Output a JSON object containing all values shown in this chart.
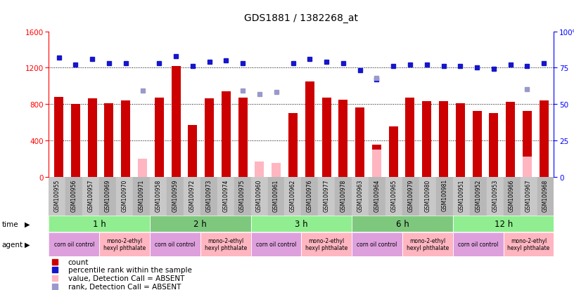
{
  "title": "GDS1881 / 1382268_at",
  "samples": [
    "GSM100955",
    "GSM100956",
    "GSM100957",
    "GSM100969",
    "GSM100970",
    "GSM100971",
    "GSM100958",
    "GSM100959",
    "GSM100972",
    "GSM100973",
    "GSM100974",
    "GSM100975",
    "GSM100960",
    "GSM100961",
    "GSM100962",
    "GSM100976",
    "GSM100977",
    "GSM100978",
    "GSM100963",
    "GSM100964",
    "GSM100965",
    "GSM100979",
    "GSM100980",
    "GSM100981",
    "GSM100951",
    "GSM100952",
    "GSM100953",
    "GSM100966",
    "GSM100967",
    "GSM100968"
  ],
  "count_values": [
    880,
    800,
    860,
    810,
    840,
    0,
    870,
    1220,
    570,
    860,
    940,
    870,
    0,
    0,
    700,
    1050,
    870,
    850,
    760,
    350,
    550,
    870,
    830,
    830,
    810,
    720,
    700,
    820,
    720,
    840
  ],
  "absent_value_bars": [
    0,
    0,
    0,
    0,
    0,
    200,
    0,
    0,
    0,
    0,
    0,
    0,
    170,
    150,
    0,
    0,
    0,
    0,
    0,
    300,
    0,
    0,
    0,
    0,
    0,
    0,
    0,
    0,
    220,
    0
  ],
  "rank_values": [
    82,
    77,
    81,
    78,
    78,
    0,
    78,
    83,
    76,
    79,
    80,
    78,
    0,
    0,
    78,
    81,
    79,
    78,
    73,
    67,
    76,
    77,
    77,
    76,
    76,
    75,
    74,
    77,
    76,
    78
  ],
  "absent_rank_bars": [
    0,
    0,
    0,
    0,
    0,
    0,
    0,
    0,
    0,
    0,
    0,
    0,
    57,
    58,
    0,
    0,
    0,
    0,
    0,
    0,
    0,
    0,
    0,
    0,
    0,
    0,
    0,
    0,
    0,
    0
  ],
  "absent_rank_bars2": [
    0,
    0,
    0,
    0,
    0,
    59,
    0,
    0,
    0,
    0,
    0,
    59,
    0,
    0,
    0,
    0,
    0,
    0,
    0,
    68,
    0,
    0,
    0,
    0,
    0,
    0,
    0,
    0,
    60,
    0
  ],
  "time_groups": [
    {
      "label": "1 h",
      "start": 0,
      "end": 6,
      "color": "#90EE90"
    },
    {
      "label": "2 h",
      "start": 6,
      "end": 12,
      "color": "#7EC87E"
    },
    {
      "label": "3 h",
      "start": 12,
      "end": 18,
      "color": "#90EE90"
    },
    {
      "label": "6 h",
      "start": 18,
      "end": 24,
      "color": "#7EC87E"
    },
    {
      "label": "12 h",
      "start": 24,
      "end": 30,
      "color": "#90EE90"
    }
  ],
  "agent_groups": [
    {
      "label": "corn oil control",
      "start": 0,
      "end": 3,
      "color": "#DDA0DD"
    },
    {
      "label": "mono-2-ethyl\nhexyl phthalate",
      "start": 3,
      "end": 6,
      "color": "#FFB6C1"
    },
    {
      "label": "corn oil control",
      "start": 6,
      "end": 9,
      "color": "#DDA0DD"
    },
    {
      "label": "mono-2-ethyl\nhexyl phthalate",
      "start": 9,
      "end": 12,
      "color": "#FFB6C1"
    },
    {
      "label": "corn oil control",
      "start": 12,
      "end": 15,
      "color": "#DDA0DD"
    },
    {
      "label": "mono-2-ethyl\nhexyl phthalate",
      "start": 15,
      "end": 18,
      "color": "#FFB6C1"
    },
    {
      "label": "corn oil control",
      "start": 18,
      "end": 21,
      "color": "#DDA0DD"
    },
    {
      "label": "mono-2-ethyl\nhexyl phthalate",
      "start": 21,
      "end": 24,
      "color": "#FFB6C1"
    },
    {
      "label": "corn oil control",
      "start": 24,
      "end": 27,
      "color": "#DDA0DD"
    },
    {
      "label": "mono-2-ethyl\nhexyl phthalate",
      "start": 27,
      "end": 30,
      "color": "#FFB6C1"
    }
  ],
  "bar_color": "#CC0000",
  "absent_bar_color": "#FFB6C1",
  "rank_color": "#1515CC",
  "absent_rank_color": "#9999CC",
  "ylim_left": [
    0,
    1600
  ],
  "ylim_right": [
    0,
    100
  ],
  "yticks_left": [
    0,
    400,
    800,
    1200,
    1600
  ],
  "yticks_right": [
    0,
    25,
    50,
    75,
    100
  ],
  "grid_values": [
    400,
    800,
    1200
  ],
  "sample_bg": "#C8C8C8",
  "plot_bg": "#FFFFFF",
  "fig_bg": "#FFFFFF"
}
